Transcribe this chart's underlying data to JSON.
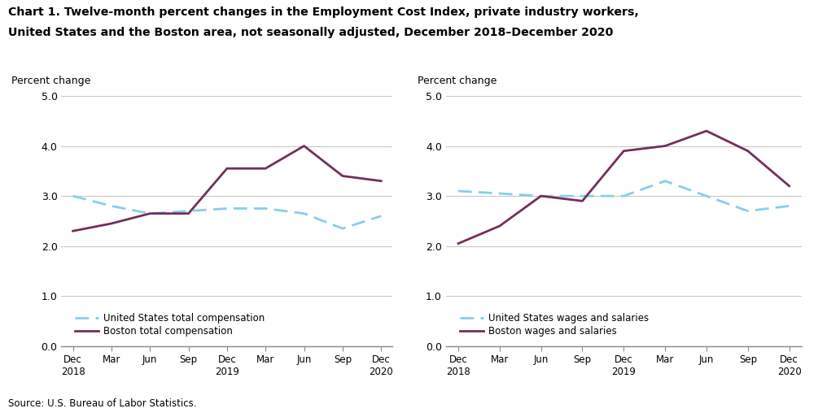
{
  "title_line1": "Chart 1. Twelve-month percent changes in the Employment Cost Index, private industry workers,",
  "title_line2": "United States and the Boston area, not seasonally adjusted, December 2018–December 2020",
  "ylabel": "Percent change",
  "source": "Source: U.S. Bureau of Labor Statistics.",
  "x_labels": [
    "Dec\n2018",
    "Mar",
    "Jun",
    "Sep",
    "Dec\n2019",
    "Mar",
    "Jun",
    "Sep",
    "Dec\n2020"
  ],
  "ylim": [
    0.0,
    5.0
  ],
  "yticks": [
    0.0,
    1.0,
    2.0,
    3.0,
    4.0,
    5.0
  ],
  "left_chart": {
    "us_total_comp": [
      3.0,
      2.8,
      2.65,
      2.7,
      2.75,
      2.75,
      2.65,
      2.35,
      2.6
    ],
    "boston_total_comp": [
      2.3,
      2.45,
      2.65,
      2.65,
      3.55,
      3.55,
      4.0,
      3.4,
      3.3
    ],
    "legend1": "United States total compensation",
    "legend2": "Boston total compensation"
  },
  "right_chart": {
    "us_wages_salaries": [
      3.1,
      3.05,
      3.0,
      3.0,
      3.0,
      3.3,
      3.0,
      2.7,
      2.8
    ],
    "boston_wages_salaries": [
      2.05,
      2.4,
      3.0,
      2.9,
      3.9,
      4.0,
      4.3,
      3.9,
      3.2
    ],
    "legend1": "United States wages and salaries",
    "legend2": "Boston wages and salaries"
  },
  "us_color": "#87CEEB",
  "boston_color": "#722F5A",
  "bg_color": "#FFFFFF",
  "grid_color": "#C8C8C8",
  "border_color": "#888888"
}
